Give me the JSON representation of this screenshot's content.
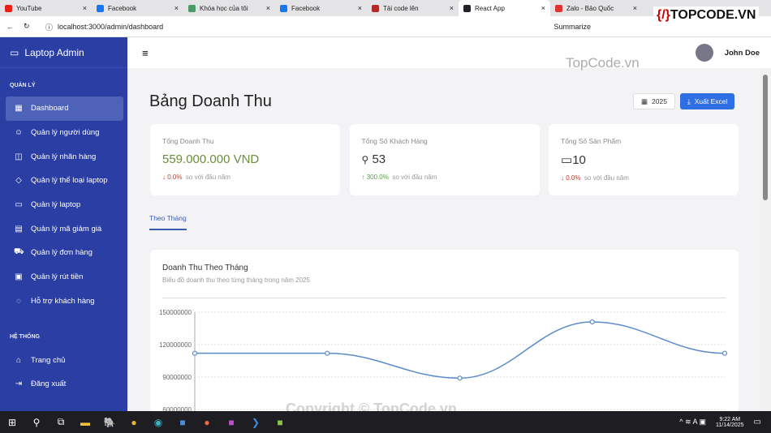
{
  "browser": {
    "tabs": [
      {
        "label": "YouTube",
        "color": "#e62117"
      },
      {
        "label": "Facebook",
        "color": "#1877f2"
      },
      {
        "label": "Khóa học của tôi",
        "color": "#4a9a6a"
      },
      {
        "label": "Facebook",
        "color": "#1877f2"
      },
      {
        "label": "Tải code lên",
        "color": "#b32a2a"
      },
      {
        "label": "React App",
        "color": "#20232a",
        "active": true
      },
      {
        "label": "Zalo - Bảo Quốc",
        "color": "#d33"
      }
    ],
    "url": "localhost:3000/admin/dashboard",
    "summarize": "Summarize"
  },
  "watermark": {
    "logo": "TOPCODE.VN",
    "text": "TopCode.vn",
    "copyright": "Copyright © TopCode.vn"
  },
  "sidebar": {
    "brand": "Laptop Admin",
    "sections": [
      {
        "title": "QUẢN LÝ",
        "items": [
          {
            "label": "Dashboard",
            "icon": "grid-icon",
            "active": true
          },
          {
            "label": "Quản lý người dùng",
            "icon": "users-icon"
          },
          {
            "label": "Quản lý nhãn hàng",
            "icon": "bag-icon"
          },
          {
            "label": "Quản lý thể loại laptop",
            "icon": "tag-icon"
          },
          {
            "label": "Quản lý laptop",
            "icon": "laptop-icon"
          },
          {
            "label": "Quản lý mã giảm giá",
            "icon": "ticket-icon"
          },
          {
            "label": "Quản lý đơn hàng",
            "icon": "cart-icon"
          },
          {
            "label": "Quản lý rút tiền",
            "icon": "wallet-icon"
          },
          {
            "label": "Hỗ trợ khách hàng",
            "icon": "chat-icon"
          }
        ]
      },
      {
        "title": "HỆ THỐNG",
        "items": [
          {
            "label": "Trang chủ",
            "icon": "home-icon"
          },
          {
            "label": "Đăng xuất",
            "icon": "logout-icon"
          }
        ]
      }
    ]
  },
  "header": {
    "user": "John Doe"
  },
  "page": {
    "title": "Bảng Doanh Thu",
    "year": "2025",
    "export": "Xuất Excel",
    "tab": "Theo Tháng"
  },
  "stats": [
    {
      "label": "Tổng Doanh Thu",
      "value": "559.000.000 VND",
      "change": "0.0%",
      "dir": "down",
      "note": "so với đầu năm"
    },
    {
      "label": "Tổng Số Khách Hàng",
      "value": "53",
      "change": "300.0%",
      "dir": "up",
      "note": "so với đầu năm"
    },
    {
      "label": "Tổng Số Sản Phẩm",
      "value": "10",
      "change": "0.0%",
      "dir": "down",
      "note": "so với đầu năm"
    }
  ],
  "colors": {
    "sidebar": "#2b3ea4",
    "accent": "#2f6fe4",
    "revenue": "#6b8e3a",
    "up": "#5a9a4a",
    "down": "#c0392b",
    "line": "#5b8cc8"
  },
  "chart_data": {
    "type": "line",
    "title": "Doanh Thu Theo Tháng",
    "subtitle": "Biểu đồ doanh thu theo từng tháng trong năm 2025",
    "yticks": [
      "150000000",
      "120000000",
      "90000000",
      "60000000"
    ],
    "ylim": [
      60000000,
      150000000
    ],
    "grid": true,
    "series": [
      {
        "values": [
          112000000,
          112000000,
          89000000,
          141000000,
          112000000
        ]
      }
    ]
  },
  "taskbar": {
    "time": "9:22 AM",
    "date": "11/14/2025"
  }
}
